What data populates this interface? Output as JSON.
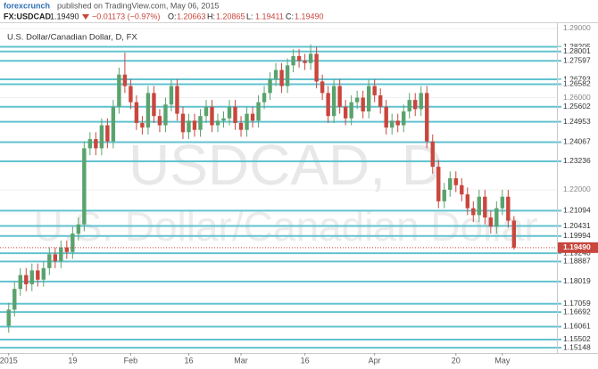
{
  "header": {
    "brand": "forexcrunch",
    "published": "published on TradingView.com, May 06, 2015",
    "symbol": "FX:USDCAD",
    "price": "1.19490",
    "change": "−0.01173 (−0.97%)",
    "ohlc": [
      {
        "label": "O:",
        "value": "1.20663"
      },
      {
        "label": "H:",
        "value": "1.20865"
      },
      {
        "label": "L:",
        "value": "1.19411"
      },
      {
        "label": "C:",
        "value": "1.19490"
      }
    ]
  },
  "chart_data": {
    "type": "candlestick",
    "title": "U.S. Dollar/Canadian Dollar, D, FX",
    "watermark": [
      "USDCAD, D",
      "U.S. Dollar/Canadian Dollar"
    ],
    "up_color": "#5aa36e",
    "down_color": "#c9463d",
    "level_color": "#62c2cf",
    "ylim": [
      1.1492,
      1.2923
    ],
    "yticks": [
      {
        "value": 1.29,
        "label": "1.29000"
      },
      {
        "value": 1.26,
        "label": "1.26000"
      },
      {
        "value": 1.22,
        "label": "1.22000"
      }
    ],
    "xlim": [
      -1.5,
      94.4
    ],
    "xticks": [
      {
        "value": 0,
        "label": "2015"
      },
      {
        "value": 11,
        "label": "19"
      },
      {
        "value": 21,
        "label": "Feb"
      },
      {
        "value": 31,
        "label": "16"
      },
      {
        "value": 40,
        "label": "Mar"
      },
      {
        "value": 51,
        "label": "16"
      },
      {
        "value": 63,
        "label": "Apr"
      },
      {
        "value": 77,
        "label": "20"
      },
      {
        "value": 85,
        "label": "May"
      }
    ],
    "levels": [
      1.28205,
      1.28001,
      1.27597,
      1.26793,
      1.26582,
      1.25602,
      1.24953,
      1.24067,
      1.23236,
      1.21094,
      1.20431,
      1.19994,
      1.19248,
      1.18887,
      1.18019,
      1.17059,
      1.16692,
      1.16061,
      1.15502,
      1.15148
    ],
    "last_price": {
      "value": 1.1949,
      "label": "1.19490"
    },
    "open": [
      1.161,
      1.168,
      1.177,
      1.183,
      1.179,
      1.185,
      1.181,
      1.186,
      1.192,
      1.189,
      1.195,
      1.193,
      1.201,
      1.205,
      1.238,
      1.242,
      1.238,
      1.248,
      1.241,
      1.256,
      1.27,
      1.265,
      1.258,
      1.249,
      1.247,
      1.262,
      1.252,
      1.248,
      1.257,
      1.265,
      1.253,
      1.245,
      1.25,
      1.246,
      1.252,
      1.256,
      1.248,
      1.25,
      1.251,
      1.256,
      1.249,
      1.246,
      1.253,
      1.25,
      1.258,
      1.262,
      1.268,
      1.272,
      1.265,
      1.274,
      1.278,
      1.276,
      1.275,
      1.279,
      1.267,
      1.262,
      1.252,
      1.265,
      1.256,
      1.251,
      1.258,
      1.26,
      1.254,
      1.265,
      1.261,
      1.256,
      1.247,
      1.25,
      1.248,
      1.254,
      1.259,
      1.255,
      1.262,
      1.241,
      1.23,
      1.215,
      1.22,
      1.225,
      1.222,
      1.218,
      1.212,
      1.209,
      1.217,
      1.208,
      1.204,
      1.212,
      1.217,
      1.20663
    ],
    "high": [
      1.171,
      1.18,
      1.186,
      1.186,
      1.188,
      1.188,
      1.189,
      1.195,
      1.195,
      1.198,
      1.198,
      1.204,
      1.208,
      1.241,
      1.245,
      1.245,
      1.251,
      1.251,
      1.259,
      1.273,
      1.2795,
      1.268,
      1.261,
      1.252,
      1.265,
      1.265,
      1.255,
      1.26,
      1.268,
      1.268,
      1.256,
      1.253,
      1.253,
      1.255,
      1.259,
      1.259,
      1.253,
      1.254,
      1.259,
      1.259,
      1.252,
      1.256,
      1.256,
      1.261,
      1.265,
      1.271,
      1.275,
      1.275,
      1.277,
      1.281,
      1.281,
      1.279,
      1.283,
      1.282,
      1.27,
      1.265,
      1.268,
      1.268,
      1.259,
      1.261,
      1.263,
      1.263,
      1.268,
      1.268,
      1.264,
      1.259,
      1.253,
      1.253,
      1.257,
      1.262,
      1.262,
      1.265,
      1.265,
      1.244,
      1.233,
      1.223,
      1.228,
      1.228,
      1.225,
      1.221,
      1.215,
      1.22,
      1.22,
      1.211,
      1.215,
      1.22,
      1.22,
      1.20865
    ],
    "low": [
      1.158,
      1.165,
      1.174,
      1.176,
      1.176,
      1.178,
      1.178,
      1.183,
      1.186,
      1.186,
      1.19,
      1.19,
      1.198,
      1.202,
      1.235,
      1.235,
      1.235,
      1.238,
      1.238,
      1.253,
      1.262,
      1.255,
      1.246,
      1.244,
      1.244,
      1.249,
      1.245,
      1.245,
      1.254,
      1.25,
      1.242,
      1.242,
      1.243,
      1.243,
      1.249,
      1.245,
      1.245,
      1.247,
      1.248,
      1.246,
      1.243,
      1.243,
      1.247,
      1.247,
      1.255,
      1.259,
      1.265,
      1.262,
      1.262,
      1.271,
      1.273,
      1.272,
      1.272,
      1.264,
      1.259,
      1.249,
      1.249,
      1.253,
      1.248,
      1.248,
      1.255,
      1.251,
      1.251,
      1.258,
      1.253,
      1.244,
      1.244,
      1.245,
      1.245,
      1.251,
      1.252,
      1.252,
      1.238,
      1.227,
      1.212,
      1.212,
      1.217,
      1.219,
      1.215,
      1.209,
      1.206,
      1.206,
      1.205,
      1.201,
      1.201,
      1.209,
      1.2036,
      1.19411
    ],
    "close": [
      1.168,
      1.177,
      1.183,
      1.179,
      1.185,
      1.181,
      1.186,
      1.192,
      1.189,
      1.195,
      1.193,
      1.201,
      1.205,
      1.238,
      1.242,
      1.238,
      1.248,
      1.241,
      1.256,
      1.27,
      1.265,
      1.258,
      1.249,
      1.247,
      1.262,
      1.252,
      1.248,
      1.257,
      1.265,
      1.253,
      1.245,
      1.25,
      1.246,
      1.252,
      1.256,
      1.248,
      1.25,
      1.251,
      1.256,
      1.249,
      1.246,
      1.253,
      1.25,
      1.258,
      1.262,
      1.268,
      1.272,
      1.265,
      1.274,
      1.278,
      1.276,
      1.275,
      1.279,
      1.267,
      1.262,
      1.252,
      1.265,
      1.256,
      1.251,
      1.258,
      1.26,
      1.254,
      1.265,
      1.261,
      1.256,
      1.247,
      1.25,
      1.248,
      1.254,
      1.259,
      1.255,
      1.262,
      1.241,
      1.23,
      1.215,
      1.22,
      1.225,
      1.222,
      1.218,
      1.212,
      1.209,
      1.217,
      1.208,
      1.204,
      1.212,
      1.217,
      1.2066,
      1.1949
    ]
  }
}
